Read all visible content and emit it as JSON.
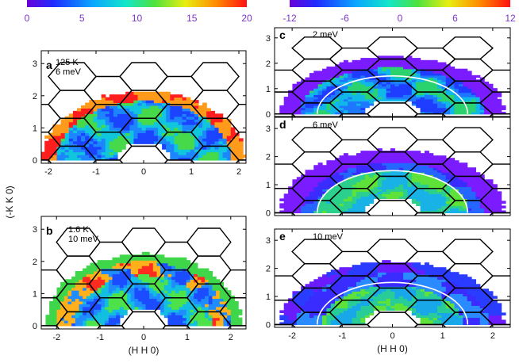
{
  "colorbars": [
    {
      "id": "left",
      "ticks": [
        "0",
        "5",
        "10",
        "15",
        "20"
      ]
    },
    {
      "id": "right",
      "ticks": [
        "-12",
        "-6",
        "0",
        "6",
        "12"
      ]
    }
  ],
  "tick_color": "#7a35c9",
  "shared_y_label": "(-K K 0)",
  "panels": [
    {
      "id": "a",
      "label": "a",
      "lines": [
        "125 K",
        "6 meV"
      ],
      "mode": "abs",
      "palette": "red-edge",
      "show_circle": false,
      "xticks": [
        "-2",
        "-1",
        "0",
        "1",
        "2"
      ],
      "yticks": [
        "0",
        "1",
        "2",
        "3"
      ],
      "xlabel": ""
    },
    {
      "id": "b",
      "label": "b",
      "lines": [
        "1.6 K",
        "10 meV"
      ],
      "mode": "abs",
      "palette": "red-ring",
      "show_circle": false,
      "xticks": [
        "-2",
        "-1",
        "0",
        "1",
        "2"
      ],
      "yticks": [
        "0",
        "1",
        "2",
        "3"
      ],
      "xlabel": "(H H 0)"
    },
    {
      "id": "c",
      "label": "c",
      "lines": [
        "2 meV"
      ],
      "mode": "diff",
      "palette": "violet-rim",
      "show_circle": true,
      "xticks": [],
      "yticks": [
        "0",
        "1",
        "2",
        "3"
      ],
      "xlabel": ""
    },
    {
      "id": "d",
      "label": "d",
      "lines": [
        "6 meV"
      ],
      "mode": "diff",
      "palette": "violet-green",
      "show_circle": true,
      "xticks": [],
      "yticks": [
        "0",
        "1",
        "2",
        "3"
      ],
      "xlabel": ""
    },
    {
      "id": "e",
      "label": "e",
      "lines": [
        "10 meV"
      ],
      "mode": "diff",
      "palette": "violet-blue",
      "show_circle": true,
      "xticks": [
        "-2",
        "-1",
        "0",
        "1",
        "2"
      ],
      "yticks": [
        "0",
        "1",
        "2",
        "3"
      ],
      "xlabel": "(H H 0)"
    }
  ]
}
